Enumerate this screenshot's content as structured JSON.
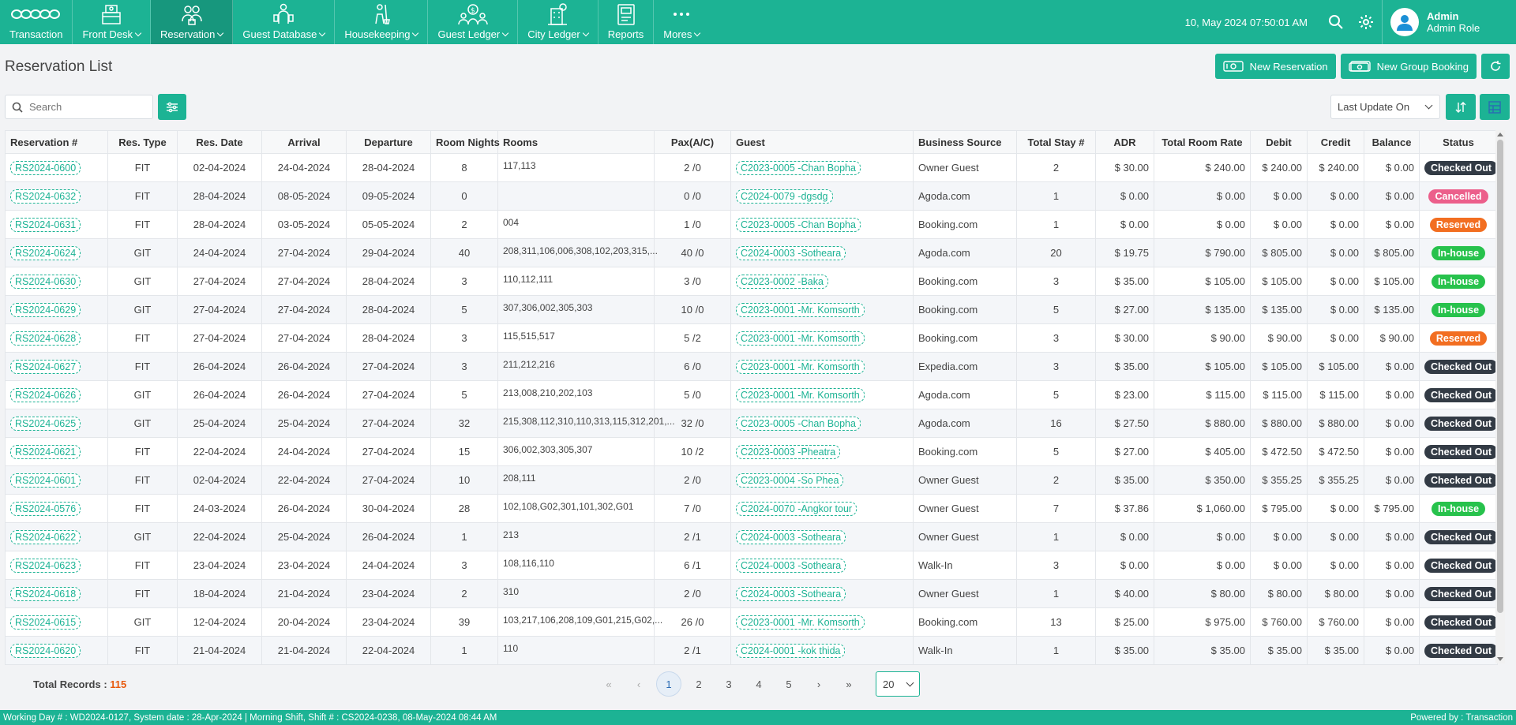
{
  "nav": {
    "items": [
      {
        "label": "Transaction",
        "icon": "transaction-icon",
        "has_dropdown": false
      },
      {
        "label": "Front Desk",
        "icon": "front-desk-icon",
        "has_dropdown": true
      },
      {
        "label": "Reservation",
        "icon": "reservation-icon",
        "has_dropdown": true,
        "active": true
      },
      {
        "label": "Guest Database",
        "icon": "guest-database-icon",
        "has_dropdown": true
      },
      {
        "label": "Housekeeping",
        "icon": "housekeeping-icon",
        "has_dropdown": true
      },
      {
        "label": "Guest Ledger",
        "icon": "guest-ledger-icon",
        "has_dropdown": true
      },
      {
        "label": "City Ledger",
        "icon": "city-ledger-icon",
        "has_dropdown": true
      },
      {
        "label": "Reports",
        "icon": "reports-icon",
        "has_dropdown": false
      },
      {
        "label": "Mores",
        "icon": "more-dots-icon",
        "has_dropdown": true
      }
    ],
    "datetime": "10, May 2024 07:50:01 AM",
    "user_name": "Admin",
    "user_role": "Admin Role"
  },
  "page": {
    "title": "Reservation List",
    "new_reservation": "New Reservation",
    "new_group_booking": "New Group Booking"
  },
  "search": {
    "placeholder": "Search",
    "value": ""
  },
  "sort": {
    "selected": "Last Update On"
  },
  "colors": {
    "brand": "#1cb394",
    "checked_out": "#333b45",
    "cancelled": "#ec5f8b",
    "reserved": "#f26e21",
    "in_house": "#27c24c"
  },
  "table": {
    "columns": [
      "Reservation #",
      "Res. Type",
      "Res. Date",
      "Arrival",
      "Departure",
      "Room Nights",
      "Rooms",
      "Pax(A/C)",
      "Guest",
      "Business Source",
      "Total Stay #",
      "ADR",
      "Total Room Rate",
      "Debit",
      "Credit",
      "Balance",
      "Status"
    ],
    "rows": [
      [
        "RS2024-0600",
        "FIT",
        "02-04-2024",
        "24-04-2024",
        "28-04-2024",
        "8",
        "117,113",
        "2 /0",
        "C2023-0005 -Chan Bopha",
        "Owner Guest",
        "2",
        "$ 30.00",
        "$ 240.00",
        "$ 240.00",
        "$ 240.00",
        "$ 0.00",
        "Checked Out"
      ],
      [
        "RS2024-0632",
        "FIT",
        "28-04-2024",
        "08-05-2024",
        "09-05-2024",
        "0",
        "",
        "0 /0",
        "C2024-0079 -dgsdg",
        "Agoda.com",
        "1",
        "$ 0.00",
        "$ 0.00",
        "$ 0.00",
        "$ 0.00",
        "$ 0.00",
        "Cancelled"
      ],
      [
        "RS2024-0631",
        "FIT",
        "28-04-2024",
        "03-05-2024",
        "05-05-2024",
        "2",
        "004",
        "1 /0",
        "C2023-0005 -Chan Bopha",
        "Booking.com",
        "1",
        "$ 0.00",
        "$ 0.00",
        "$ 0.00",
        "$ 0.00",
        "$ 0.00",
        "Reserved"
      ],
      [
        "RS2024-0624",
        "GIT",
        "24-04-2024",
        "27-04-2024",
        "29-04-2024",
        "40",
        "208,311,106,006,308,102,203,315,...",
        "40 /0",
        "C2024-0003 -Sotheara",
        "Agoda.com",
        "20",
        "$ 19.75",
        "$ 790.00",
        "$ 805.00",
        "$ 0.00",
        "$ 805.00",
        "In-house"
      ],
      [
        "RS2024-0630",
        "GIT",
        "27-04-2024",
        "27-04-2024",
        "28-04-2024",
        "3",
        "110,112,111",
        "3 /0",
        "C2023-0002 -Baka",
        "Booking.com",
        "3",
        "$ 35.00",
        "$ 105.00",
        "$ 105.00",
        "$ 0.00",
        "$ 105.00",
        "In-house"
      ],
      [
        "RS2024-0629",
        "GIT",
        "27-04-2024",
        "27-04-2024",
        "28-04-2024",
        "5",
        "307,306,002,305,303",
        "10 /0",
        "C2023-0001 -Mr. Komsorth",
        "Booking.com",
        "5",
        "$ 27.00",
        "$ 135.00",
        "$ 135.00",
        "$ 0.00",
        "$ 135.00",
        "In-house"
      ],
      [
        "RS2024-0628",
        "FIT",
        "27-04-2024",
        "27-04-2024",
        "28-04-2024",
        "3",
        "115,515,517",
        "5 /2",
        "C2023-0001 -Mr. Komsorth",
        "Booking.com",
        "3",
        "$ 30.00",
        "$ 90.00",
        "$ 90.00",
        "$ 0.00",
        "$ 90.00",
        "Reserved"
      ],
      [
        "RS2024-0627",
        "FIT",
        "26-04-2024",
        "26-04-2024",
        "27-04-2024",
        "3",
        "211,212,216",
        "6 /0",
        "C2023-0001 -Mr. Komsorth",
        "Expedia.com",
        "3",
        "$ 35.00",
        "$ 105.00",
        "$ 105.00",
        "$ 105.00",
        "$ 0.00",
        "Checked Out"
      ],
      [
        "RS2024-0626",
        "GIT",
        "26-04-2024",
        "26-04-2024",
        "27-04-2024",
        "5",
        "213,008,210,202,103",
        "5 /0",
        "C2023-0001 -Mr. Komsorth",
        "Agoda.com",
        "5",
        "$ 23.00",
        "$ 115.00",
        "$ 115.00",
        "$ 115.00",
        "$ 0.00",
        "Checked Out"
      ],
      [
        "RS2024-0625",
        "GIT",
        "25-04-2024",
        "25-04-2024",
        "27-04-2024",
        "32",
        "215,308,112,310,110,313,115,312,201,...",
        "32 /0",
        "C2023-0005 -Chan Bopha",
        "Agoda.com",
        "16",
        "$ 27.50",
        "$ 880.00",
        "$ 880.00",
        "$ 880.00",
        "$ 0.00",
        "Checked Out"
      ],
      [
        "RS2024-0621",
        "FIT",
        "22-04-2024",
        "24-04-2024",
        "27-04-2024",
        "15",
        "306,002,303,305,307",
        "10 /2",
        "C2023-0003 -Pheatra",
        "Booking.com",
        "5",
        "$ 27.00",
        "$ 405.00",
        "$ 472.50",
        "$ 472.50",
        "$ 0.00",
        "Checked Out"
      ],
      [
        "RS2024-0601",
        "FIT",
        "02-04-2024",
        "22-04-2024",
        "27-04-2024",
        "10",
        "208,111",
        "2 /0",
        "C2023-0004 -So Phea",
        "Owner Guest",
        "2",
        "$ 35.00",
        "$ 350.00",
        "$ 355.25",
        "$ 355.25",
        "$ 0.00",
        "Checked Out"
      ],
      [
        "RS2024-0576",
        "FIT",
        "24-03-2024",
        "26-04-2024",
        "30-04-2024",
        "28",
        "102,108,G02,301,101,302,G01",
        "7 /0",
        "C2024-0070 -Angkor tour",
        "Owner Guest",
        "7",
        "$ 37.86",
        "$ 1,060.00",
        "$ 795.00",
        "$ 0.00",
        "$ 795.00",
        "In-house"
      ],
      [
        "RS2024-0622",
        "GIT",
        "22-04-2024",
        "25-04-2024",
        "26-04-2024",
        "1",
        "213",
        "2 /1",
        "C2024-0003 -Sotheara",
        "Owner Guest",
        "1",
        "$ 0.00",
        "$ 0.00",
        "$ 0.00",
        "$ 0.00",
        "$ 0.00",
        "Checked Out"
      ],
      [
        "RS2024-0623",
        "FIT",
        "23-04-2024",
        "23-04-2024",
        "24-04-2024",
        "3",
        "108,116,110",
        "6 /1",
        "C2024-0003 -Sotheara",
        "Walk-In",
        "3",
        "$ 0.00",
        "$ 0.00",
        "$ 0.00",
        "$ 0.00",
        "$ 0.00",
        "Checked Out"
      ],
      [
        "RS2024-0618",
        "FIT",
        "18-04-2024",
        "21-04-2024",
        "23-04-2024",
        "2",
        "310",
        "2 /0",
        "C2024-0003 -Sotheara",
        "Owner Guest",
        "1",
        "$ 40.00",
        "$ 80.00",
        "$ 80.00",
        "$ 80.00",
        "$ 0.00",
        "Checked Out"
      ],
      [
        "RS2024-0615",
        "GIT",
        "12-04-2024",
        "20-04-2024",
        "23-04-2024",
        "39",
        "103,217,106,208,109,G01,215,G02,...",
        "26 /0",
        "C2023-0001 -Mr. Komsorth",
        "Booking.com",
        "13",
        "$ 25.00",
        "$ 975.00",
        "$ 760.00",
        "$ 760.00",
        "$ 0.00",
        "Checked Out"
      ],
      [
        "RS2024-0620",
        "FIT",
        "21-04-2024",
        "21-04-2024",
        "22-04-2024",
        "1",
        "110",
        "2 /1",
        "C2024-0001 -kok thida",
        "Walk-In",
        "1",
        "$ 35.00",
        "$ 35.00",
        "$ 35.00",
        "$ 35.00",
        "$ 0.00",
        "Checked Out"
      ]
    ]
  },
  "footer": {
    "total_label": "Total Records :",
    "total_value": "115",
    "pages": [
      "1",
      "2",
      "3",
      "4",
      "5"
    ],
    "current_page": "1",
    "page_size": "20"
  },
  "statusbar": {
    "left": "Working Day # : WD2024-0127, System date : 28-Apr-2024 | Morning Shift, Shift # : CS2024-0238, 08-May-2024 08:44 AM",
    "right": "Powered by : Transaction"
  }
}
